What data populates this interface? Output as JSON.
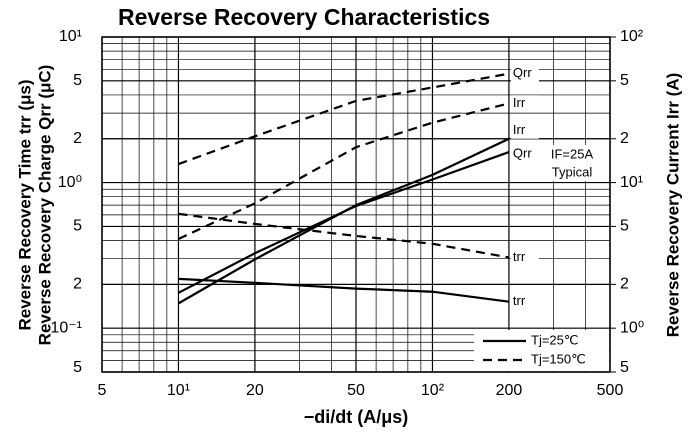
{
  "chart_data": {
    "type": "line",
    "title": "Reverse Recovery Characteristics",
    "x_label": "−di/dt (A/μs)",
    "y_label": [
      "Reverse Recovery Time trr (μs)",
      "Reverse Recovery Charge Qrr (μC)"
    ],
    "y2_label": "Reverse Recovery Current Irr (A)",
    "log_x": true,
    "log_y": true,
    "grid": true,
    "xlim": [
      5,
      500
    ],
    "xticks": [
      5,
      {
        "value": 10,
        "label": "10¹"
      },
      20,
      50,
      {
        "value": 100,
        "label": "10²"
      },
      200,
      500
    ],
    "ylim": [
      0.05,
      10
    ],
    "yticks": [
      {
        "value": 10,
        "label": "10¹"
      },
      5,
      2,
      {
        "value": 1,
        "label": "10⁰"
      },
      {
        "value": 0.5,
        "label": "5"
      },
      {
        "value": 0.2,
        "label": "2"
      },
      {
        "value": 0.1,
        "label": "10⁻¹"
      },
      {
        "value": 0.05,
        "label": "5"
      }
    ],
    "y2lim": [
      0.5,
      100
    ],
    "y2ticks": [
      {
        "value": 100,
        "label": "10²"
      },
      {
        "value": 50,
        "label": "5"
      },
      {
        "value": 20,
        "label": "2"
      },
      {
        "value": 10,
        "label": "10¹"
      },
      5,
      2,
      {
        "value": 1,
        "label": "10⁰"
      },
      {
        "value": 0.5,
        "label": "5"
      }
    ],
    "x": [
      10,
      20,
      50,
      100,
      200
    ],
    "series": [
      {
        "name": "Qrr",
        "color": "#000000",
        "line_style": "dashed",
        "values": [
          1.34,
          2.08,
          3.64,
          4.5,
          5.6
        ]
      },
      {
        "name": "Irr",
        "color": "#000000",
        "line_style": "dashed",
        "axis": "y2",
        "values": [
          4.1,
          7.2,
          17.5,
          25.8,
          35
        ]
      },
      {
        "name": "Irr",
        "color": "#000000",
        "line_style": "solid",
        "axis": "y2",
        "values": [
          1.48,
          2.97,
          7.0,
          11.3,
          20
        ]
      },
      {
        "name": "Qrr",
        "color": "#000000",
        "line_style": "solid",
        "values": [
          0.175,
          0.327,
          0.69,
          1.05,
          1.62
        ]
      },
      {
        "name": "trr",
        "color": "#000000",
        "line_style": "dashed",
        "values": [
          0.61,
          0.52,
          0.43,
          0.38,
          0.306
        ]
      },
      {
        "name": "trr",
        "color": "#000000",
        "line_style": "solid",
        "values": [
          0.218,
          0.205,
          0.187,
          0.178,
          0.152
        ]
      }
    ],
    "legend": [
      {
        "label": "Tj=25℃",
        "line_style": "solid"
      },
      {
        "label": "Tj=150℃",
        "line_style": "dashed"
      }
    ],
    "annotations": [
      "IF=25A",
      "Typical"
    ]
  }
}
